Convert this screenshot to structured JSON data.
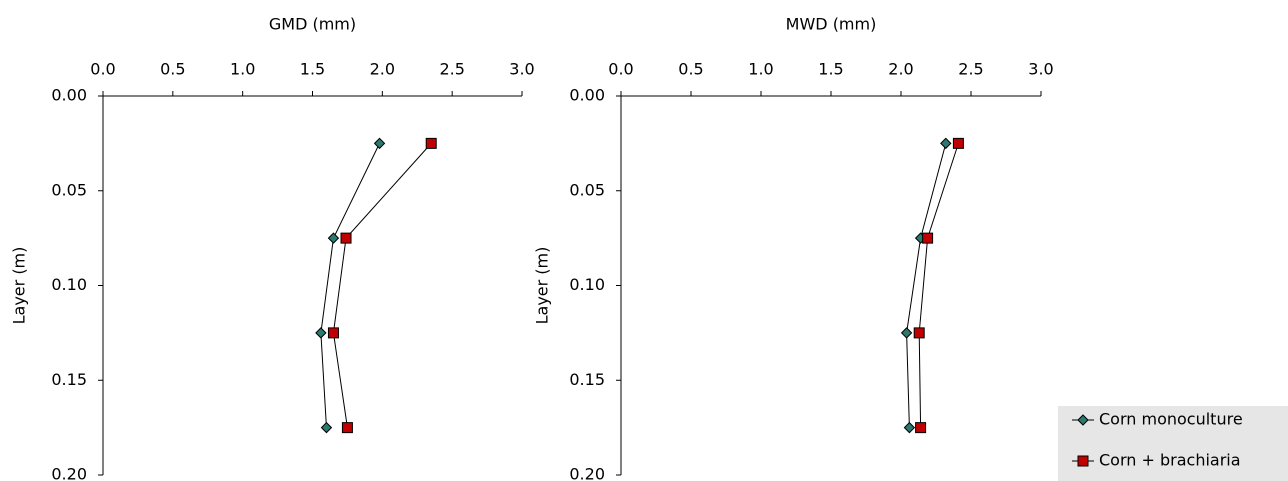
{
  "chart_data": [
    {
      "type": "line",
      "title": "GMD (mm)",
      "ylabel": "Layer (m)",
      "y": [
        0.025,
        0.075,
        0.125,
        0.175
      ],
      "series": [
        {
          "name": "Corn monoculture",
          "color": "#2a7a6f",
          "marker": "diamond",
          "values": [
            1.98,
            1.65,
            1.56,
            1.6
          ]
        },
        {
          "name": "Corn + brachiaria",
          "color": "#c00000",
          "marker": "square",
          "values": [
            2.35,
            1.74,
            1.65,
            1.75
          ]
        }
      ],
      "xlim": [
        0,
        3
      ],
      "xticks": [
        {
          "value": 0,
          "label": "0.0"
        },
        0.5,
        {
          "value": 1,
          "label": "1.0"
        },
        1.5,
        {
          "value": 2,
          "label": "2.0"
        },
        2.5,
        {
          "value": 3,
          "label": "3.0"
        }
      ],
      "ylim": [
        0,
        0.2
      ],
      "yticks": [
        {
          "value": 0,
          "label": "0.00"
        },
        0.05,
        {
          "value": 0.1,
          "label": "0.10"
        },
        0.15,
        {
          "value": 0.2,
          "label": "0.20"
        }
      ]
    },
    {
      "type": "line",
      "title": "MWD (mm)",
      "ylabel": "Layer (m)",
      "y": [
        0.025,
        0.075,
        0.125,
        0.175
      ],
      "series": [
        {
          "color": "#2a7a6f",
          "marker": "diamond",
          "values": [
            2.32,
            2.14,
            2.04,
            2.06
          ]
        },
        {
          "color": "#c00000",
          "marker": "square",
          "values": [
            2.41,
            2.19,
            2.13,
            2.14
          ]
        }
      ],
      "xlim": [
        0,
        3
      ],
      "xticks": [
        {
          "value": 0,
          "label": "0.0"
        },
        0.5,
        {
          "value": 1,
          "label": "1.0"
        },
        1.5,
        {
          "value": 2,
          "label": "2.0"
        },
        2.5,
        {
          "value": 3,
          "label": "3.0"
        }
      ],
      "ylim": [
        0,
        0.2
      ],
      "yticks": [
        {
          "value": 0,
          "label": "0.00"
        },
        0.05,
        {
          "value": 0.1,
          "label": "0.10"
        },
        0.15,
        {
          "value": 0.2,
          "label": "0.20"
        }
      ]
    }
  ]
}
